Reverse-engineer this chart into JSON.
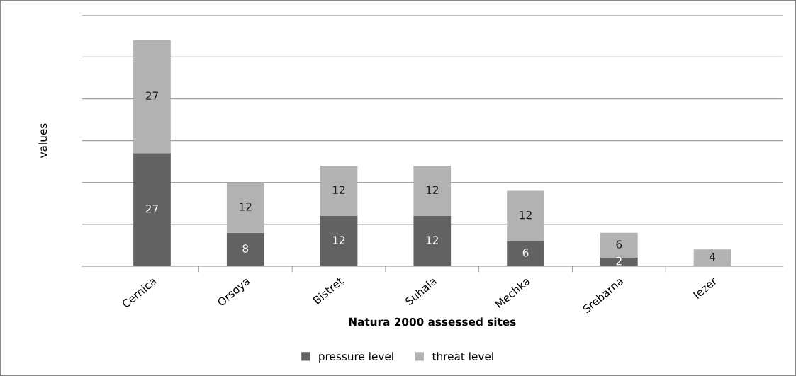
{
  "chart_data": {
    "type": "bar",
    "stacked": true,
    "xlabel": "Natura 2000 assessed sites",
    "ylabel": "values",
    "categories": [
      "Cernica",
      "Orsoya",
      "Bistreț",
      "Suhaia",
      "Mechka",
      "Srebarna",
      "Iezer"
    ],
    "series": [
      {
        "name": "pressure level",
        "color": "#626262",
        "values": [
          27,
          8,
          12,
          12,
          6,
          2,
          null
        ]
      },
      {
        "name": "threat level",
        "color": "#b2b2b2",
        "values": [
          27,
          12,
          12,
          12,
          12,
          6,
          4
        ]
      }
    ],
    "ylim": [
      0,
      60
    ],
    "yticks": [
      {
        "value": 0,
        "label": null
      },
      {
        "value": 10,
        "label": null
      },
      {
        "value": 20,
        "label": null
      },
      {
        "value": 30,
        "label": null
      },
      {
        "value": 40,
        "label": null
      },
      {
        "value": 50,
        "label": null
      },
      {
        "value": 60,
        "label": null
      }
    ],
    "grid": "y",
    "legend": "bottom",
    "data_labels": true
  }
}
